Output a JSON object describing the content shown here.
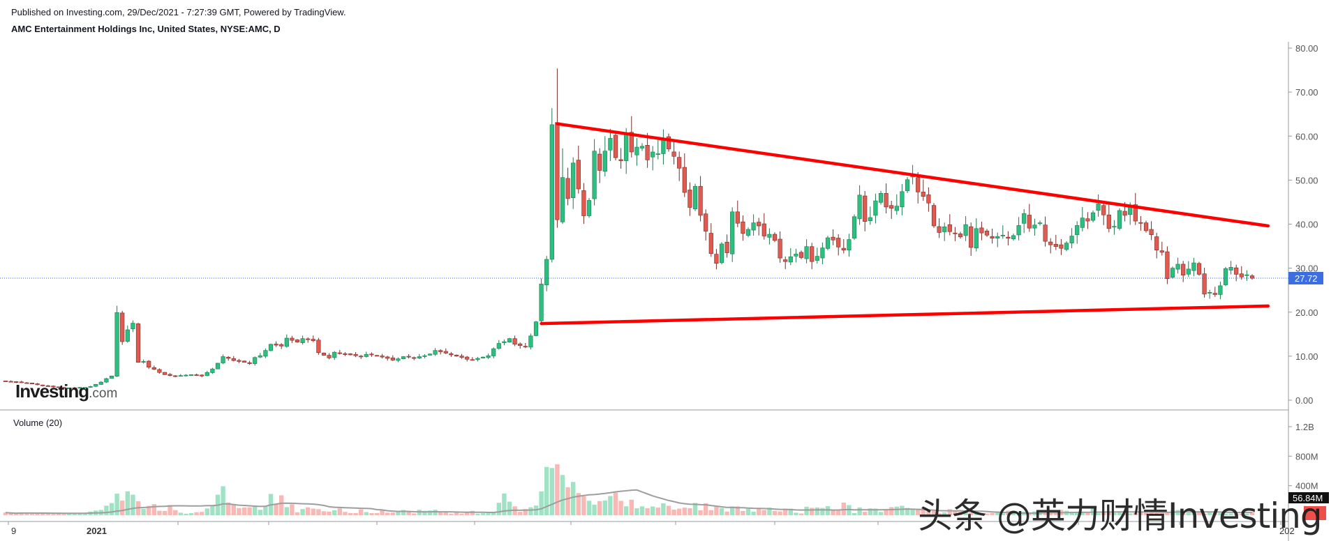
{
  "header": {
    "published": "Published on Investing.com, 29/Dec/2021 - 7:27:39 GMT, Powered by TradingView.",
    "symbol": "AMC Entertainment Holdings Inc, United States, NYSE:AMC, D"
  },
  "logo": {
    "main": "Investing",
    "suffix": ".com"
  },
  "watermark": "头条 @英力财情Investing",
  "colors": {
    "up": "#26a69a",
    "up_fill": "#2bbf80",
    "down": "#ef5350",
    "down_fill": "#e05a4f",
    "trendline": "#ff0000",
    "last_price": "#2962ff",
    "vol_up": "#9fe3c4",
    "vol_down": "#f8b8b4",
    "vol_ma": "#9e9e9e"
  },
  "chart_data": [
    {
      "type": "candlestick",
      "title": "AMC Entertainment Holdings Inc, United States, NYSE:AMC, D",
      "x_ticks": [
        "9",
        "2021",
        "202"
      ],
      "y_ticks": [
        "80.00",
        "70.00",
        "60.00",
        "50.00",
        "40.00",
        "30.00",
        "20.00",
        "10.00",
        "0.00"
      ],
      "ylim": [
        -3,
        83
      ],
      "last_price": "27.72",
      "series": [
        {
          "name": "price",
          "close": [
            4.3,
            4.2,
            4.1,
            4.0,
            3.9,
            3.7,
            3.5,
            3.3,
            3.2,
            3.0,
            2.9,
            2.8,
            2.8,
            2.8,
            2.9,
            2.9,
            3.1,
            3.6,
            4.1,
            4.9,
            5.5,
            19.9,
            13.3,
            16.0,
            17.5,
            8.6,
            8.8,
            7.5,
            7.0,
            6.3,
            5.8,
            5.6,
            5.5,
            5.6,
            5.7,
            5.8,
            5.7,
            5.5,
            6.3,
            7.1,
            8.4,
            9.9,
            9.5,
            9.0,
            8.8,
            8.6,
            8.3,
            9.7,
            10.1,
            11.3,
            12.7,
            12.5,
            12.3,
            14.1,
            13.6,
            13.2,
            14.0,
            13.8,
            13.5,
            10.8,
            10.2,
            9.6,
            10.9,
            10.6,
            10.5,
            10.3,
            10.1,
            9.9,
            10.4,
            10.3,
            10.1,
            9.8,
            9.5,
            9.1,
            9.4,
            9.9,
            9.8,
            9.6,
            9.9,
            10.1,
            10.5,
            11.3,
            11.0,
            10.7,
            10.3,
            10.0,
            9.7,
            9.3,
            9.2,
            9.5,
            9.8,
            10.1,
            11.7,
            12.9,
            13.3,
            14.0,
            12.7,
            12.4,
            12.1,
            14.6,
            17.8,
            26.4,
            32.0,
            62.6,
            41.0,
            50.6,
            45.8,
            53.9,
            48.0,
            41.9,
            45.4,
            56.6,
            52.2,
            56.6,
            59.5,
            55.1,
            54.4,
            60.4,
            56.4,
            57.5,
            57.7,
            54.6,
            56.4,
            56.0,
            59.4,
            57.1,
            55.4,
            52.7,
            47.2,
            43.8,
            48.6,
            42.0,
            38.4,
            33.3,
            31.1,
            35.5,
            33.5,
            42.8,
            40.2,
            37.9,
            38.8,
            40.3,
            39.6,
            37.3,
            37.7,
            36.3,
            32.3,
            31.5,
            32.6,
            33.2,
            32.4,
            34.9,
            31.5,
            32.7,
            34.6,
            36.9,
            36.4,
            34.8,
            34.1,
            36.5,
            41.7,
            46.6,
            40.6,
            41.5,
            45.3,
            47.0,
            43.9,
            43.6,
            44.1,
            47.4,
            50.1,
            51.0,
            47.3,
            46.3,
            44.8,
            39.6,
            38.1,
            39.4,
            38.3,
            37.8,
            37.1,
            39.9,
            34.7,
            39.0,
            38.0,
            37.5,
            36.8,
            37.2,
            37.5,
            36.8,
            37.4,
            39.7,
            42.4,
            39.1,
            39.8,
            40.3,
            36.1,
            35.3,
            34.9,
            34.5,
            35.7,
            37.3,
            39.7,
            41.4,
            40.7,
            42.6,
            44.6,
            42.1,
            39.0,
            39.5,
            43.1,
            42.0,
            43.9,
            40.7,
            40.3,
            38.5,
            37.6,
            34.1,
            33.6,
            27.6,
            30.0,
            30.9,
            28.4,
            29.8,
            31.2,
            28.6,
            24.1,
            24.5,
            24.0,
            26.0,
            29.9,
            30.2,
            28.6,
            28.0,
            28.5,
            27.7
          ],
          "note_ohlc_approximated_from_closes": true
        }
      ],
      "trendlines": [
        {
          "name": "resistance",
          "x": [
            104,
            238
          ],
          "y": [
            62.8,
            39.6
          ]
        },
        {
          "name": "support",
          "x": [
            101,
            238
          ],
          "y": [
            17.4,
            21.4
          ]
        }
      ]
    },
    {
      "type": "bar",
      "title": "Volume (20)",
      "y_ticks": [
        "1.2B",
        "800M",
        "400M"
      ],
      "ylim": [
        0,
        1300
      ],
      "last_value_label": "56.84M",
      "series": [
        {
          "name": "volume",
          "values": [
            36,
            26,
            19,
            35,
            29,
            27,
            26,
            32,
            23,
            17,
            33,
            17,
            29,
            26,
            22,
            32,
            49,
            63,
            72,
            129,
            164,
            292,
            197,
            324,
            278,
            190,
            87,
            126,
            150,
            60,
            58,
            138,
            69,
            34,
            20,
            28,
            40,
            45,
            91,
            126,
            278,
            393,
            173,
            152,
            97,
            104,
            107,
            119,
            73,
            119,
            288,
            146,
            270,
            110,
            148,
            40,
            83,
            106,
            89,
            82,
            54,
            49,
            66,
            93,
            45,
            29,
            29,
            79,
            42,
            28,
            29,
            66,
            34,
            37,
            48,
            70,
            44,
            25,
            74,
            60,
            64,
            74,
            52,
            40,
            21,
            36,
            21,
            49,
            59,
            21,
            27,
            27,
            42,
            168,
            295,
            184,
            120,
            46,
            83,
            107,
            131,
            324,
            654,
            640,
            690,
            545,
            379,
            451,
            300,
            256,
            196,
            143,
            191,
            198,
            260,
            306,
            194,
            121,
            209,
            94,
            120,
            95,
            118,
            103,
            161,
            128,
            76,
            89,
            102,
            95,
            166,
            66,
            160,
            69,
            127,
            96,
            49,
            119,
            119,
            57,
            87,
            48,
            91,
            71,
            103,
            58,
            52,
            90,
            89,
            34,
            24,
            115,
            100,
            105,
            98,
            123,
            64,
            68,
            171,
            137,
            29,
            105,
            46,
            93,
            90,
            44,
            71,
            109,
            116,
            128,
            98,
            76,
            89,
            71,
            53,
            66,
            26,
            38,
            81,
            65,
            43,
            38,
            43,
            57,
            28,
            23,
            30,
            51,
            26,
            62,
            27,
            40,
            49,
            25,
            51,
            60,
            38,
            60,
            51,
            72,
            60,
            47,
            44,
            40,
            32,
            96,
            27,
            50,
            43,
            32,
            54,
            26,
            24,
            31,
            53,
            70,
            42,
            29,
            48,
            32,
            66,
            71,
            61,
            30,
            63,
            49,
            22,
            50,
            33,
            32,
            21,
            23,
            21,
            18,
            21,
            46,
            57
          ]
        },
        {
          "name": "MA (20)",
          "values": [
            36,
            31,
            27,
            29,
            29,
            29,
            28,
            29,
            28,
            27,
            27,
            26,
            26,
            26,
            26,
            26,
            28,
            30,
            32,
            37,
            43,
            56,
            64,
            79,
            92,
            101,
            104,
            109,
            115,
            119,
            120,
            126,
            128,
            128,
            127,
            126,
            126,
            127,
            130,
            130,
            136,
            153,
            152,
            145,
            136,
            132,
            128,
            123,
            119,
            122,
            140,
            150,
            162,
            163,
            162,
            158,
            155,
            153,
            150,
            143,
            132,
            114,
            108,
            105,
            102,
            99,
            96,
            94,
            92,
            89,
            76,
            72,
            60,
            56,
            51,
            53,
            51,
            47,
            46,
            45,
            46,
            47,
            46,
            46,
            45,
            43,
            42,
            41,
            42,
            41,
            40,
            38,
            38,
            45,
            58,
            64,
            68,
            67,
            68,
            70,
            74,
            87,
            117,
            147,
            179,
            206,
            224,
            245,
            257,
            267,
            276,
            280,
            287,
            295,
            305,
            317,
            325,
            331,
            339,
            342,
            315,
            288,
            262,
            240,
            220,
            199,
            184,
            166,
            156,
            148,
            147,
            143,
            142,
            131,
            123,
            113,
            105,
            106,
            102,
            101,
            97,
            94,
            93,
            91,
            88,
            83,
            79,
            78,
            76,
            72,
            70,
            71,
            71,
            73,
            72,
            73,
            70,
            71,
            75,
            78,
            72,
            75,
            73,
            75,
            74,
            74,
            75,
            76,
            78,
            80,
            84,
            81,
            79,
            77,
            73,
            69,
            62,
            60,
            60,
            59,
            60,
            57,
            57,
            55,
            55,
            50,
            45,
            42,
            39,
            35,
            31,
            30,
            28,
            28,
            28,
            29,
            33,
            34,
            34,
            34,
            35,
            37,
            39,
            40,
            39,
            42,
            42,
            43,
            43,
            43,
            45,
            45,
            45,
            44,
            43,
            44,
            42,
            40,
            40,
            39,
            41,
            44,
            45,
            45,
            45,
            46,
            45,
            44,
            44,
            43,
            41,
            39,
            37,
            37,
            37,
            37
          ]
        }
      ]
    }
  ]
}
